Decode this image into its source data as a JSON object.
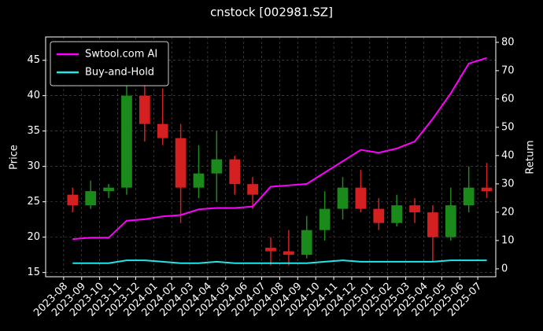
{
  "chart_data": {
    "type": "candlestick",
    "title": "cnstock [002981.SZ]",
    "ylabel": "Price",
    "y2label": "Return",
    "x": [
      "2023-08",
      "2023-09",
      "2023-10",
      "2023-11",
      "2023-12",
      "2024-01",
      "2024-02",
      "2024-03",
      "2024-04",
      "2024-05",
      "2024-06",
      "2024-07",
      "2024-08",
      "2024-09",
      "2024-10",
      "2024-11",
      "2024-12",
      "2025-01",
      "2025-02",
      "2025-03",
      "2025-04",
      "2025-05",
      "2025-06",
      "2025-07"
    ],
    "open": [
      26,
      24.5,
      26.5,
      27,
      40,
      36,
      34,
      27,
      29,
      31,
      27.5,
      18.5,
      18,
      17.5,
      21,
      24,
      27,
      24,
      22,
      24.5,
      23.5,
      20,
      24.5,
      27
    ],
    "high": [
      27,
      28,
      27.5,
      45,
      44,
      41,
      36,
      33,
      35,
      31.5,
      28.5,
      20,
      21,
      23,
      26.5,
      28.5,
      29.5,
      25.5,
      26,
      25.5,
      24.5,
      27,
      30,
      30.5
    ],
    "low": [
      23.5,
      24,
      25.5,
      26,
      33.5,
      33,
      22,
      25.5,
      25,
      26,
      24,
      16,
      16,
      17,
      19.5,
      22.5,
      23.5,
      21,
      21.5,
      22,
      16.5,
      19.5,
      23.5,
      25.5
    ],
    "close": [
      24.5,
      26.5,
      27,
      40,
      36,
      34,
      27,
      29,
      31,
      27.5,
      26,
      18,
      17.5,
      21,
      24,
      27,
      24,
      22,
      24.5,
      23.5,
      20,
      24.5,
      27,
      26.5
    ],
    "up_color": "#1a8a1a",
    "down_color": "#d42020",
    "series": [
      {
        "name": "Swtool.com AI",
        "color": "#ff00ff",
        "axis": "y2",
        "values": [
          10.5,
          11,
          11,
          17,
          17.5,
          18.5,
          19,
          21,
          21.5,
          21.5,
          22,
          29,
          29.5,
          30,
          34,
          38,
          42,
          41,
          42.5,
          45,
          53,
          62,
          72.5,
          74.5
        ]
      },
      {
        "name": "Buy-and-Hold",
        "color": "#22e5e5",
        "axis": "y2",
        "values": [
          2,
          2,
          2,
          3,
          3,
          2.5,
          2,
          2,
          2.5,
          2,
          2,
          2,
          2,
          2,
          2.5,
          3,
          2.5,
          2.5,
          2.5,
          2.5,
          2.5,
          3,
          3,
          3
        ]
      }
    ],
    "xlim": [
      "2023-07",
      "2025-08"
    ],
    "xticks": [
      "2023-08",
      "2023-09",
      "2023-10",
      "2023-11",
      "2023-12",
      "2024-01",
      "2024-02",
      "2024-03",
      "2024-04",
      "2024-05",
      "2024-06",
      "2024-07",
      "2024-08",
      "2024-09",
      "2024-10",
      "2024-11",
      "2024-12",
      "2025-01",
      "2025-02",
      "2025-03",
      "2025-04",
      "2025-05",
      "2025-06",
      "2025-07"
    ],
    "ylim": [
      14.4,
      48.3
    ],
    "yticks": [
      15,
      20,
      25,
      30,
      35,
      40,
      45
    ],
    "y2lim": [
      -2.8,
      81.9
    ],
    "y2ticks": [
      0,
      10,
      20,
      30,
      40,
      50,
      60,
      70,
      80
    ],
    "grid": true,
    "legend": "upper left"
  }
}
